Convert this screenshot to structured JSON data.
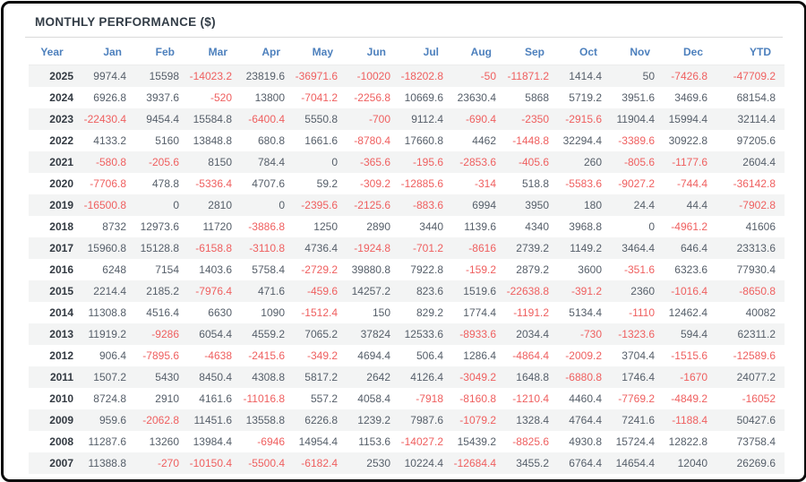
{
  "title": "MONTHLY PERFORMANCE ($)",
  "colors": {
    "header_blue": "#4d80bd",
    "negative_red": "#ef5f5f",
    "positive_gray": "#555e69",
    "stripe_gray": "#f3f4f4",
    "border_black": "#0a0a0a"
  },
  "chart_data": {
    "type": "table",
    "title": "MONTHLY PERFORMANCE ($)",
    "columns": [
      "Year",
      "Jan",
      "Feb",
      "Mar",
      "Apr",
      "May",
      "Jun",
      "Jul",
      "Aug",
      "Sep",
      "Oct",
      "Nov",
      "Dec",
      "YTD"
    ],
    "rows": [
      {
        "year": "2025",
        "values": [
          "9974.4",
          "15598",
          "-14023.2",
          "23819.6",
          "-36971.6",
          "-10020",
          "-18202.8",
          "-50",
          "-11871.2",
          "1414.4",
          "50",
          "-7426.8",
          "-47709.2"
        ]
      },
      {
        "year": "2024",
        "values": [
          "6926.8",
          "3937.6",
          "-520",
          "13800",
          "-7041.2",
          "-2256.8",
          "10669.6",
          "23630.4",
          "5868",
          "5719.2",
          "3951.6",
          "3469.6",
          "68154.8"
        ]
      },
      {
        "year": "2023",
        "values": [
          "-22430.4",
          "9454.4",
          "15584.8",
          "-6400.4",
          "5550.8",
          "-700",
          "9112.4",
          "-690.4",
          "-2350",
          "-2915.6",
          "11904.4",
          "15994.4",
          "32114.4"
        ]
      },
      {
        "year": "2022",
        "values": [
          "4133.2",
          "5160",
          "13848.8",
          "680.8",
          "1661.6",
          "-8780.4",
          "17660.8",
          "4462",
          "-1448.8",
          "32294.4",
          "-3389.6",
          "30922.8",
          "97205.6"
        ]
      },
      {
        "year": "2021",
        "values": [
          "-580.8",
          "-205.6",
          "8150",
          "784.4",
          "0",
          "-365.6",
          "-195.6",
          "-2853.6",
          "-405.6",
          "260",
          "-805.6",
          "-1177.6",
          "2604.4"
        ]
      },
      {
        "year": "2020",
        "values": [
          "-7706.8",
          "478.8",
          "-5336.4",
          "4707.6",
          "59.2",
          "-309.2",
          "-12885.6",
          "-314",
          "518.8",
          "-5583.6",
          "-9027.2",
          "-744.4",
          "-36142.8"
        ]
      },
      {
        "year": "2019",
        "values": [
          "-16500.8",
          "0",
          "2810",
          "0",
          "-2395.6",
          "-2125.6",
          "-883.6",
          "6994",
          "3950",
          "180",
          "24.4",
          "44.4",
          "-7902.8"
        ]
      },
      {
        "year": "2018",
        "values": [
          "8732",
          "12973.6",
          "11720",
          "-3886.8",
          "1250",
          "2890",
          "3440",
          "1139.6",
          "4340",
          "3968.8",
          "0",
          "-4961.2",
          "41606"
        ]
      },
      {
        "year": "2017",
        "values": [
          "15960.8",
          "15128.8",
          "-6158.8",
          "-3110.8",
          "4736.4",
          "-1924.8",
          "-701.2",
          "-8616",
          "2739.2",
          "1149.2",
          "3464.4",
          "646.4",
          "23313.6"
        ]
      },
      {
        "year": "2016",
        "values": [
          "6248",
          "7154",
          "1403.6",
          "5758.4",
          "-2729.2",
          "39880.8",
          "7922.8",
          "-159.2",
          "2879.2",
          "3600",
          "-351.6",
          "6323.6",
          "77930.4"
        ]
      },
      {
        "year": "2015",
        "values": [
          "2214.4",
          "2185.2",
          "-7976.4",
          "471.6",
          "-459.6",
          "14257.2",
          "823.6",
          "1519.6",
          "-22638.8",
          "-391.2",
          "2360",
          "-1016.4",
          "-8650.8"
        ]
      },
      {
        "year": "2014",
        "values": [
          "11308.8",
          "4516.4",
          "6630",
          "1090",
          "-1512.4",
          "150",
          "829.2",
          "1774.4",
          "-1191.2",
          "5134.4",
          "-1110",
          "12462.4",
          "40082"
        ]
      },
      {
        "year": "2013",
        "values": [
          "11919.2",
          "-9286",
          "6054.4",
          "4559.2",
          "7065.2",
          "37824",
          "12533.6",
          "-8933.6",
          "2034.4",
          "-730",
          "-1323.6",
          "594.4",
          "62311.2"
        ]
      },
      {
        "year": "2012",
        "values": [
          "906.4",
          "-7895.6",
          "-4638",
          "-2415.6",
          "-349.2",
          "4694.4",
          "506.4",
          "1286.4",
          "-4864.4",
          "-2009.2",
          "3704.4",
          "-1515.6",
          "-12589.6"
        ]
      },
      {
        "year": "2011",
        "values": [
          "1507.2",
          "5430",
          "8450.4",
          "4308.8",
          "5817.2",
          "2642",
          "4126.4",
          "-3049.2",
          "1648.8",
          "-6880.8",
          "1746.4",
          "-1670",
          "24077.2"
        ]
      },
      {
        "year": "2010",
        "values": [
          "8724.8",
          "2910",
          "4161.6",
          "-11016.8",
          "557.2",
          "4058.4",
          "-7918",
          "-8160.8",
          "-1210.4",
          "4460.4",
          "-7769.2",
          "-4849.2",
          "-16052"
        ]
      },
      {
        "year": "2009",
        "values": [
          "959.6",
          "-2062.8",
          "11451.6",
          "13558.8",
          "6226.8",
          "1239.2",
          "7987.6",
          "-1079.2",
          "1328.4",
          "4764.4",
          "7241.6",
          "-1188.4",
          "50427.6"
        ]
      },
      {
        "year": "2008",
        "values": [
          "11287.6",
          "13260",
          "13984.4",
          "-6946",
          "14954.4",
          "1153.6",
          "-14027.2",
          "15439.2",
          "-8825.6",
          "4930.8",
          "15724.4",
          "12822.8",
          "73758.4"
        ]
      },
      {
        "year": "2007",
        "values": [
          "11388.8",
          "-270",
          "-10150.4",
          "-5500.4",
          "-6182.4",
          "2530",
          "10224.4",
          "-12684.4",
          "3455.2",
          "6764.4",
          "14654.4",
          "12040",
          "26269.6"
        ]
      }
    ]
  }
}
